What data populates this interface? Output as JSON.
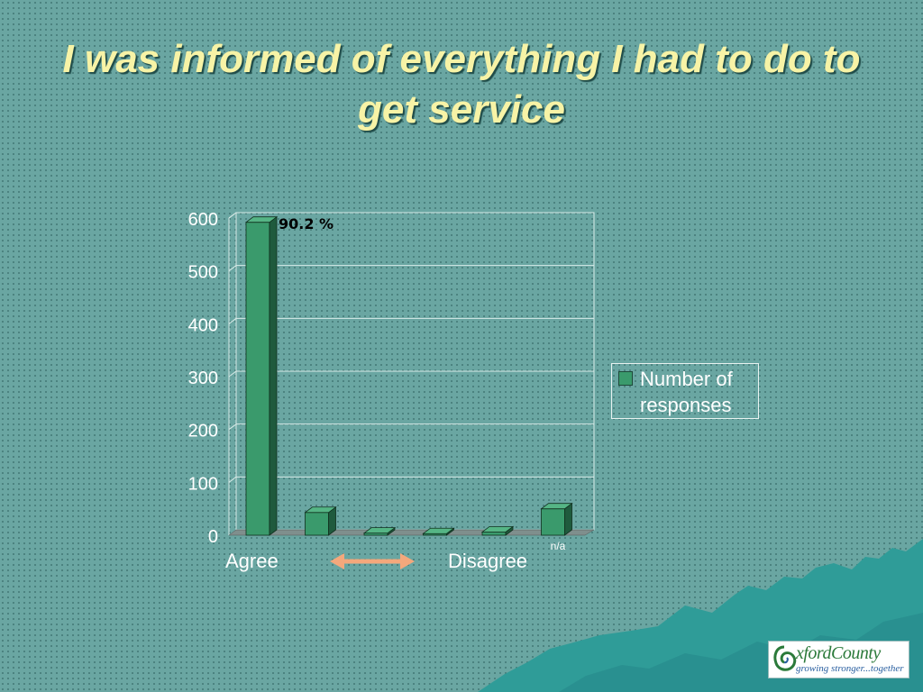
{
  "slide": {
    "title": "I was informed of everything I had to do to get service"
  },
  "chart_data": {
    "type": "bar",
    "categories": [
      "Agree",
      "",
      "",
      "",
      "",
      "n/a"
    ],
    "values": [
      592,
      43,
      4,
      3,
      6,
      50
    ],
    "ylim": [
      0,
      600
    ],
    "yticks": [
      0,
      100,
      200,
      300,
      400,
      500,
      600
    ],
    "grid": true,
    "legend_position": "right",
    "series": [
      {
        "name": "Number of responses",
        "values": [
          592,
          43,
          4,
          3,
          6,
          50
        ]
      }
    ],
    "annotations": {
      "first_bar_label": "90.2 %"
    },
    "axis_labels": {
      "left": "Agree",
      "right": "Disagree",
      "extra": "n/a"
    },
    "bar_color": "#3a9a6c"
  },
  "legend": {
    "label_line1": "Number of",
    "label_line2": "responses"
  },
  "arrow_color": "#f4a87c",
  "logo": {
    "name": "xfordCounty",
    "initial": "O",
    "tagline": "growing stronger...together"
  },
  "colors": {
    "background": "#6aa6a2",
    "title": "#f7f3a6",
    "mountains": "#2f9c98"
  }
}
